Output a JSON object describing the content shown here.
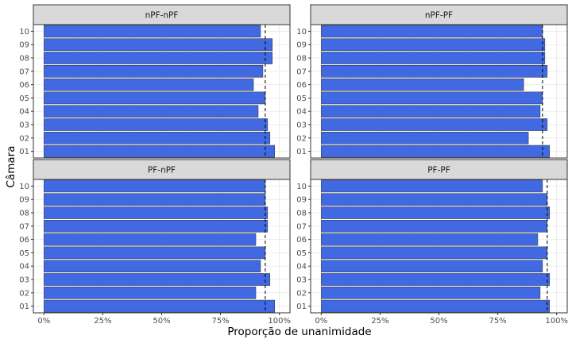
{
  "chart_data": {
    "type": "bar",
    "orientation": "horizontal",
    "xlabel": "Proporção de unanimidade",
    "ylabel": "Câmara",
    "x_ticks": [
      "0%",
      "25%",
      "50%",
      "75%",
      "100%"
    ],
    "xlim": [
      0,
      1
    ],
    "categories": [
      "01",
      "02",
      "03",
      "04",
      "05",
      "06",
      "07",
      "08",
      "09",
      "10"
    ],
    "grid": true,
    "bar_color": "#4169E1",
    "reference_line_style": "dashed",
    "facets": [
      {
        "label": "nPF-nPF",
        "values": [
          0.98,
          0.96,
          0.95,
          0.91,
          0.94,
          0.89,
          0.93,
          0.97,
          0.97,
          0.92
        ],
        "reference": 0.94
      },
      {
        "label": "nPF-PF",
        "values": [
          0.97,
          0.88,
          0.96,
          0.93,
          0.94,
          0.86,
          0.96,
          0.95,
          0.95,
          0.94
        ],
        "reference": 0.94
      },
      {
        "label": "PF-nPF",
        "values": [
          0.98,
          0.9,
          0.96,
          0.92,
          0.94,
          0.9,
          0.95,
          0.95,
          0.94,
          0.94
        ],
        "reference": 0.94
      },
      {
        "label": "PF-PF",
        "values": [
          0.97,
          0.93,
          0.97,
          0.94,
          0.96,
          0.92,
          0.96,
          0.97,
          0.96,
          0.94
        ],
        "reference": 0.96
      }
    ]
  }
}
